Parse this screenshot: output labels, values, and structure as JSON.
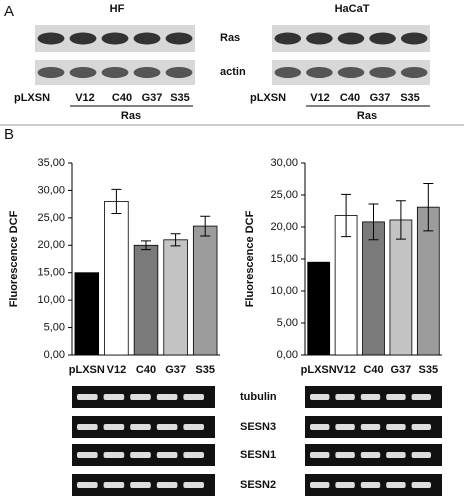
{
  "panels": {
    "a_label": "A",
    "b_label": "B",
    "hf": "HF",
    "hacat": "HaCaT",
    "blot_rows": [
      "Ras",
      "actin"
    ],
    "lanes_left": [
      "pLXSN",
      "V12",
      "C40",
      "G37",
      "S35"
    ],
    "ras_group_left": "Ras",
    "lanes_right": [
      "pLXSN",
      "V12",
      "C40",
      "G37",
      "S35"
    ],
    "ras_group_right": "Ras",
    "gels": [
      "tubulin",
      "SESN3",
      "SESN1",
      "SESN2"
    ]
  },
  "chart_data": [
    {
      "type": "bar",
      "y_label": "Fluorescence DCF",
      "categories": [
        "pLXSN",
        "V12",
        "C40",
        "G37",
        "S35"
      ],
      "values": [
        15,
        28,
        20,
        21,
        23.5
      ],
      "errors": [
        0,
        2.2,
        0.8,
        1.1,
        1.8
      ],
      "colors": [
        "#000000",
        "#ffffff",
        "#7a7a7a",
        "#c4c4c4",
        "#9c9c9c"
      ],
      "ylim": [
        0,
        35
      ],
      "yticks": [
        {
          "value": 0,
          "label": "0,00"
        },
        {
          "value": 5,
          "label": "5,00"
        },
        {
          "value": 10,
          "label": "10,00"
        },
        {
          "value": 15,
          "label": "15,00"
        },
        {
          "value": 20,
          "label": "20,00"
        },
        {
          "value": 25,
          "label": "25,00"
        },
        {
          "value": 30,
          "label": "30,00"
        },
        {
          "value": 35,
          "label": "35,00"
        }
      ]
    },
    {
      "type": "bar",
      "y_label": "Fluorescence DCF",
      "categories": [
        "pLXSN",
        "V12",
        "C40",
        "G37",
        "S35"
      ],
      "values": [
        14.5,
        21.8,
        20.8,
        21.1,
        23.1
      ],
      "errors": [
        0,
        3.3,
        2.8,
        3,
        3.7
      ],
      "colors": [
        "#000000",
        "#ffffff",
        "#7a7a7a",
        "#c4c4c4",
        "#9c9c9c"
      ],
      "ylim": [
        0,
        30
      ],
      "yticks": [
        {
          "value": 0,
          "label": "0,00"
        },
        {
          "value": 5,
          "label": "5,00"
        },
        {
          "value": 10,
          "label": "10,00"
        },
        {
          "value": 15,
          "label": "15,00"
        },
        {
          "value": 20,
          "label": "20,00"
        },
        {
          "value": 25,
          "label": "25,00"
        },
        {
          "value": 30,
          "label": "30,00"
        }
      ]
    }
  ]
}
